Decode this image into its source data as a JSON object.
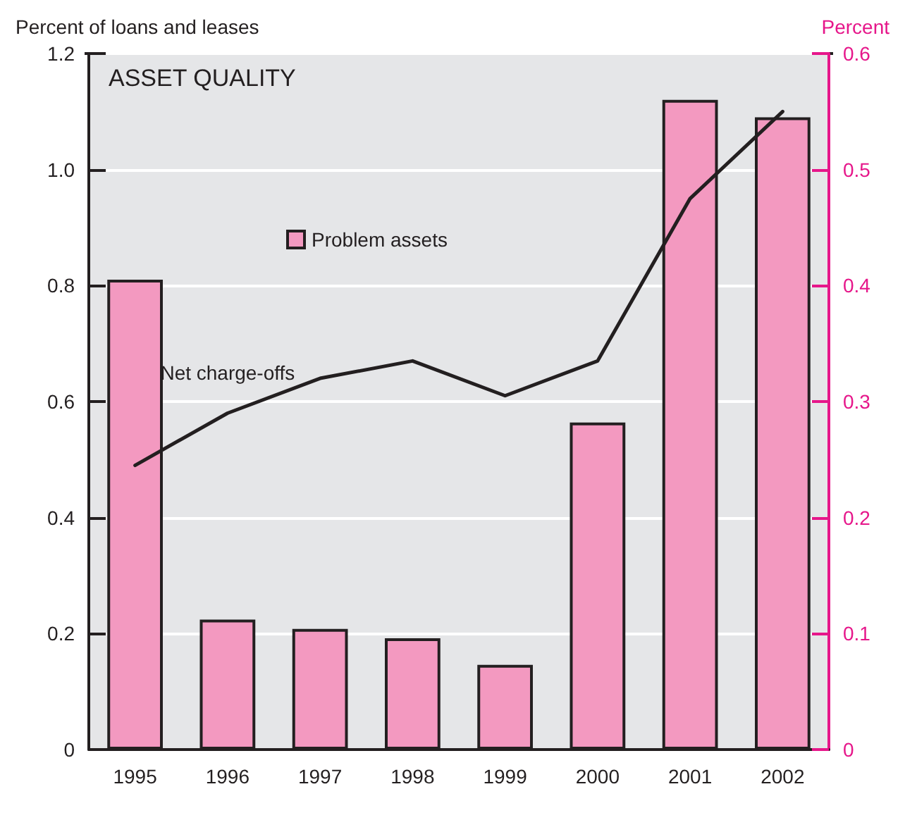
{
  "chart_data": {
    "type": "bar",
    "title": "ASSET QUALITY",
    "ylabel": "Percent of loans and leases",
    "y2label": "Percent",
    "categories": [
      "1995",
      "1996",
      "1997",
      "1998",
      "1999",
      "2000",
      "2001",
      "2002"
    ],
    "series": [
      {
        "name": "Problem assets",
        "axis": "y2",
        "color": "#f399c0",
        "values": [
          0.405,
          0.112,
          0.104,
          0.096,
          0.073,
          0.282,
          0.56,
          0.545
        ]
      },
      {
        "name": "Net charge-offs",
        "type": "line",
        "color": "#231f20",
        "values": [
          0.49,
          0.58,
          0.64,
          0.67,
          0.61,
          0.67,
          0.95,
          1.1
        ]
      }
    ],
    "ylim": [
      0,
      1.2
    ],
    "yticks": [
      {
        "value": 0,
        "label": "0"
      },
      0.2,
      0.4,
      0.6,
      0.8,
      {
        "value": 1,
        "label": "1.0"
      },
      1.2
    ],
    "y2lim": [
      0,
      0.6
    ],
    "y2ticks": [
      {
        "value": 0,
        "label": "0"
      },
      0.1,
      0.2,
      0.3,
      0.4,
      0.5,
      0.6
    ],
    "grid": "y",
    "legend": "top",
    "marker": "none"
  }
}
